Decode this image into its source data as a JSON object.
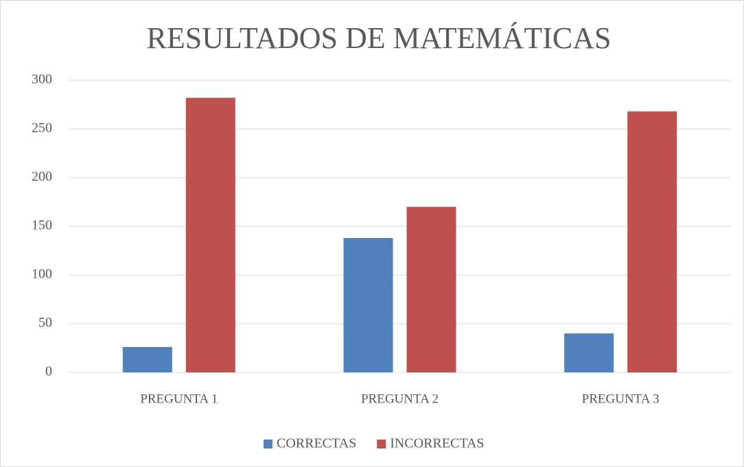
{
  "chart_data": {
    "type": "bar",
    "title": "RESULTADOS DE MATEMÁTICAS",
    "categories": [
      "PREGUNTA 1",
      "PREGUNTA 2",
      "PREGUNTA 3"
    ],
    "series": [
      {
        "name": "CORRECTAS",
        "color": "#4f81bd",
        "values": [
          26,
          138,
          40
        ]
      },
      {
        "name": "INCORRECTAS",
        "color": "#c0504d",
        "values": [
          282,
          170,
          268
        ]
      }
    ],
    "ylim": [
      0,
      300
    ],
    "yticks": [
      0,
      50,
      100,
      150,
      200,
      250,
      300
    ],
    "grid": true,
    "legend": "bottom"
  }
}
